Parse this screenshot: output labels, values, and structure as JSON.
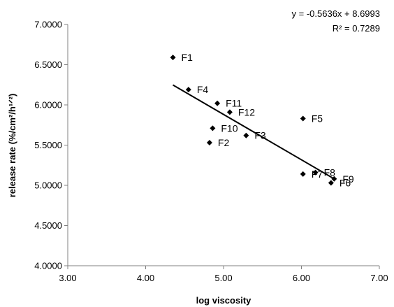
{
  "chart_data": {
    "type": "scatter",
    "xlabel": "log viscosity",
    "ylabel": "release rate (%/cm²/h¹ᐟ²)",
    "xlim": [
      3.0,
      7.0
    ],
    "ylim": [
      4.0,
      7.0
    ],
    "xticks": [
      "3.00",
      "4.00",
      "5.00",
      "6.00",
      "7.00"
    ],
    "yticks": [
      "4.0000",
      "4.5000",
      "5.0000",
      "5.5000",
      "6.0000",
      "6.5000",
      "7.0000"
    ],
    "points": [
      {
        "label": "F1",
        "x": 4.35,
        "y": 6.59
      },
      {
        "label": "F2",
        "x": 4.82,
        "y": 5.53
      },
      {
        "label": "F3",
        "x": 5.29,
        "y": 5.62
      },
      {
        "label": "F4",
        "x": 4.55,
        "y": 6.19
      },
      {
        "label": "F5",
        "x": 6.02,
        "y": 5.83
      },
      {
        "label": "F6",
        "x": 6.38,
        "y": 5.03
      },
      {
        "label": "F7",
        "x": 6.02,
        "y": 5.14
      },
      {
        "label": "F8",
        "x": 6.18,
        "y": 5.16
      },
      {
        "label": "F9",
        "x": 6.42,
        "y": 5.08
      },
      {
        "label": "F10",
        "x": 4.86,
        "y": 5.71
      },
      {
        "label": "F11",
        "x": 4.92,
        "y": 6.02
      },
      {
        "label": "F12",
        "x": 5.08,
        "y": 5.91
      }
    ],
    "trendline": {
      "slope": -0.5636,
      "intercept": 8.6993,
      "x_from": 4.35,
      "x_to": 6.42
    },
    "equation_text": "y = -0.5636x + 8.6993",
    "r2_text": "R² = 0.7289",
    "grid": false,
    "legend": "none",
    "marker": "diamond",
    "marker_color": "#000000"
  }
}
